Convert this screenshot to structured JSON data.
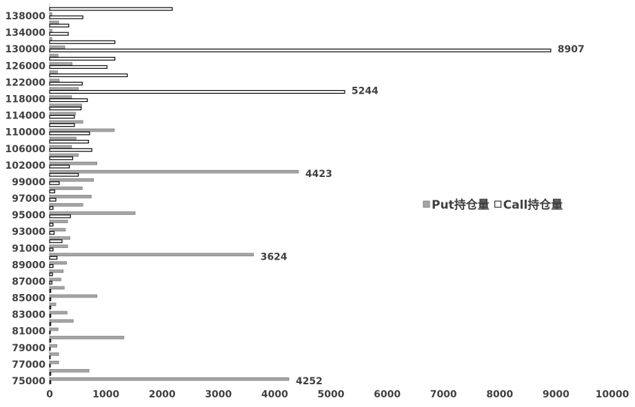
{
  "chart_data": {
    "type": "bar",
    "orientation": "horizontal",
    "categories": [
      "75000",
      null,
      "77000",
      null,
      "79000",
      null,
      "81000",
      null,
      "83000",
      null,
      "85000",
      null,
      "87000",
      null,
      "89000",
      null,
      "91000",
      null,
      "93000",
      null,
      "95000",
      null,
      "97000",
      null,
      "99000",
      null,
      "102000",
      null,
      "106000",
      null,
      "110000",
      null,
      "114000",
      null,
      "118000",
      null,
      "122000",
      null,
      "126000",
      null,
      "130000",
      null,
      "134000",
      null,
      "138000",
      null
    ],
    "series": [
      {
        "name": "Put持仓量",
        "color": "#a6a6a6",
        "values": [
          4252,
          700,
          160,
          160,
          130,
          1320,
          150,
          420,
          310,
          110,
          840,
          260,
          200,
          240,
          300,
          3624,
          320,
          360,
          280,
          320,
          1520,
          590,
          740,
          580,
          780,
          4423,
          840,
          510,
          390,
          470,
          1150,
          590,
          460,
          570,
          390,
          510,
          170,
          140,
          400,
          150,
          270,
          40,
          40,
          160,
          40,
          0
        ]
      },
      {
        "name": "Call持仓量",
        "color": "#ffffff",
        "values": [
          20,
          20,
          10,
          10,
          10,
          20,
          10,
          20,
          20,
          20,
          20,
          20,
          40,
          50,
          60,
          130,
          60,
          220,
          80,
          60,
          370,
          60,
          110,
          90,
          170,
          510,
          350,
          410,
          750,
          690,
          710,
          440,
          440,
          560,
          670,
          5244,
          580,
          1380,
          1020,
          1160,
          8907,
          1160,
          330,
          340,
          590,
          2180
        ]
      }
    ],
    "xlim": [
      0,
      10000
    ],
    "xticks": [
      0,
      1000,
      2000,
      3000,
      4000,
      5000,
      6000,
      7000,
      8000,
      9000,
      10000
    ],
    "legend": "right"
  }
}
